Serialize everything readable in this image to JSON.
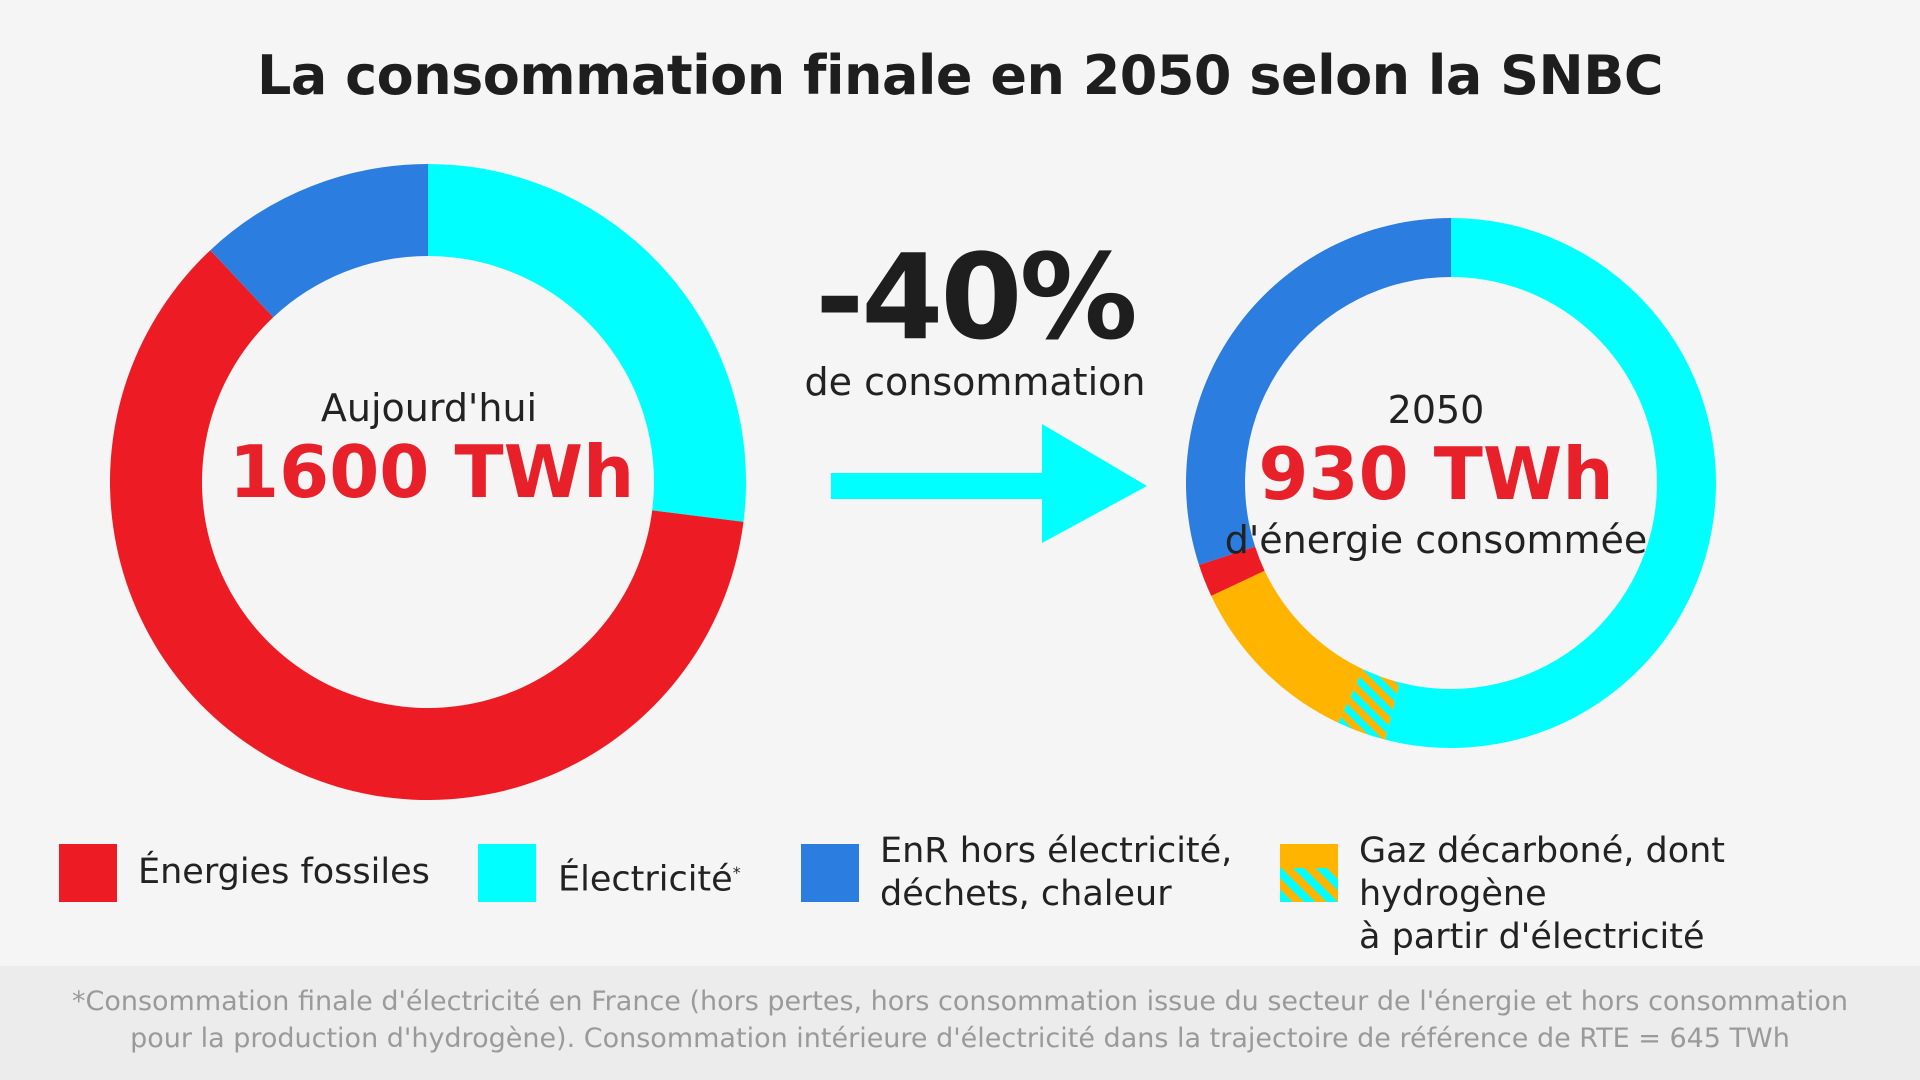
{
  "title": "La consommation finale en 2050 selon la SNBC",
  "arrow": {
    "pct": "-40%",
    "label": "de consommation"
  },
  "colors": {
    "fossiles": "#ed1c24",
    "electricite": "#00ffff",
    "enr": "#2b7de0",
    "gaz": "#ffb400",
    "background": "#f5f5f5"
  },
  "chart_data": [
    {
      "type": "donut",
      "center": {
        "label": "Aujourd'hui",
        "value": "1600 TWh"
      },
      "total_twh": 1600,
      "series": [
        {
          "key": "electricite",
          "share": 0.27
        },
        {
          "key": "fossiles",
          "share": 0.61
        },
        {
          "key": "enr",
          "share": 0.12
        }
      ]
    },
    {
      "type": "donut",
      "center": {
        "label": "2050",
        "value": "930 TWh",
        "sublabel": "d'énergie consommée"
      },
      "total_twh": 930,
      "series": [
        {
          "key": "electricite",
          "share": 0.54
        },
        {
          "key": "gaz_hydrogene",
          "share": 0.03
        },
        {
          "key": "gaz",
          "share": 0.11
        },
        {
          "key": "fossiles",
          "share": 0.02
        },
        {
          "key": "enr",
          "share": 0.3
        }
      ]
    }
  ],
  "legend": [
    {
      "key": "fossiles",
      "label": "Énergies fossiles"
    },
    {
      "key": "electricite",
      "label": "Électricité",
      "sup": "*"
    },
    {
      "key": "enr",
      "line1": "EnR hors électricité,",
      "line2": "déchets, chaleur"
    },
    {
      "key": "gaz",
      "line1": "Gaz décarboné, dont hydrogène",
      "line2": "à partir d'électricité"
    }
  ],
  "footnote": {
    "line1": "*Consommation finale d'électricité en France (hors pertes, hors consommation issue du secteur de l'énergie et hors consommation",
    "line2": "pour la production d'hydrogène). Consommation intérieure d'électricité dans la trajectoire de référence de RTE = 645 TWh"
  }
}
